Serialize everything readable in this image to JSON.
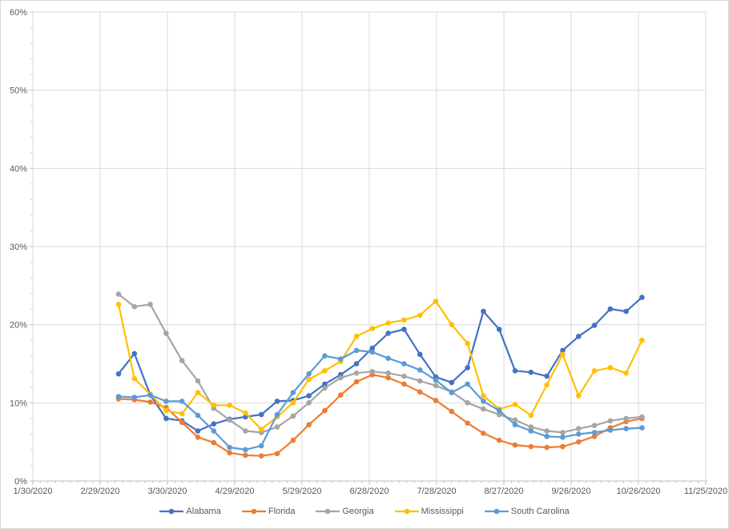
{
  "chart_data": {
    "type": "line",
    "title": "",
    "legend_position": "bottom",
    "grid": true,
    "y_axis": {
      "min": 0,
      "max": 60,
      "step": 10,
      "format": "percent",
      "tick_labels": [
        "0%",
        "10%",
        "20%",
        "30%",
        "40%",
        "50%",
        "60%"
      ]
    },
    "x_axis": {
      "type": "date",
      "start": "1/30/2020",
      "end": "11/25/2020",
      "tick_labels": [
        "1/30/2020",
        "2/29/2020",
        "3/30/2020",
        "4/29/2020",
        "5/29/2020",
        "6/28/2020",
        "7/28/2020",
        "8/27/2020",
        "9/26/2020",
        "10/26/2020",
        "11/25/2020"
      ]
    },
    "x_dates": [
      "3/8/2020",
      "3/15/2020",
      "3/22/2020",
      "3/29/2020",
      "4/5/2020",
      "4/12/2020",
      "4/19/2020",
      "4/26/2020",
      "5/3/2020",
      "5/10/2020",
      "5/17/2020",
      "5/24/2020",
      "5/31/2020",
      "6/7/2020",
      "6/14/2020",
      "6/21/2020",
      "6/28/2020",
      "7/5/2020",
      "7/12/2020",
      "7/19/2020",
      "7/26/2020",
      "8/2/2020",
      "8/9/2020",
      "8/16/2020",
      "8/23/2020",
      "8/30/2020",
      "9/6/2020",
      "9/13/2020",
      "9/20/2020",
      "9/27/2020",
      "10/4/2020",
      "10/11/2020",
      "10/18/2020",
      "10/25/2020"
    ],
    "series": [
      {
        "name": "Alabama",
        "color": "#4472C4",
        "values": [
          13.7,
          16.3,
          11.0,
          8.0,
          7.7,
          6.4,
          7.3,
          7.9,
          8.2,
          8.5,
          10.2,
          10.3,
          10.9,
          12.4,
          13.6,
          15.0,
          17.0,
          18.9,
          19.4,
          16.2,
          13.3,
          12.6,
          14.5,
          21.7,
          19.4,
          14.1,
          13.9,
          13.4,
          16.7,
          18.5,
          19.9,
          22.0,
          21.7,
          23.5
        ]
      },
      {
        "name": "Florida",
        "color": "#ED7D31",
        "values": [
          10.5,
          10.4,
          10.1,
          9.4,
          7.5,
          5.6,
          4.9,
          3.6,
          3.3,
          3.2,
          3.5,
          5.2,
          7.2,
          9.0,
          11.0,
          12.7,
          13.6,
          13.2,
          12.4,
          11.4,
          10.3,
          8.9,
          7.4,
          6.1,
          5.2,
          4.6,
          4.4,
          4.3,
          4.4,
          5.0,
          5.7,
          6.8,
          7.6,
          8.0
        ]
      },
      {
        "name": "Georgia",
        "color": "#A5A5A5",
        "values": [
          23.9,
          22.3,
          22.6,
          18.9,
          15.4,
          12.8,
          9.3,
          7.8,
          6.4,
          6.2,
          6.9,
          8.3,
          10.0,
          11.9,
          13.2,
          13.8,
          14.0,
          13.8,
          13.4,
          12.8,
          12.2,
          11.4,
          10.0,
          9.2,
          8.5,
          7.8,
          6.9,
          6.4,
          6.2,
          6.7,
          7.1,
          7.7,
          8.0,
          8.2
        ]
      },
      {
        "name": "Mississippi",
        "color": "#FFC000",
        "values": [
          22.6,
          13.1,
          11.1,
          9.0,
          8.6,
          11.3,
          9.7,
          9.7,
          8.7,
          6.6,
          8.2,
          10.0,
          13.0,
          14.1,
          15.3,
          18.5,
          19.5,
          20.2,
          20.6,
          21.2,
          23.0,
          20.0,
          17.6,
          10.9,
          9.2,
          9.8,
          8.4,
          12.3,
          16.2,
          10.9,
          14.1,
          14.5,
          13.8,
          18.0
        ]
      },
      {
        "name": "South Carolina",
        "color": "#5B9BD5",
        "values": [
          10.8,
          10.7,
          11.0,
          10.2,
          10.2,
          8.4,
          6.4,
          4.3,
          4.0,
          4.5,
          8.5,
          11.3,
          13.7,
          16.0,
          15.6,
          16.7,
          16.5,
          15.7,
          15.0,
          14.2,
          12.9,
          11.3,
          12.4,
          10.2,
          9.0,
          7.2,
          6.4,
          5.7,
          5.6,
          6.0,
          6.2,
          6.5,
          6.7,
          6.8
        ]
      }
    ],
    "colors": {
      "gridline": "#D9D9D9",
      "axis_line": "#BFBFBF",
      "tick": "#BFBFBF",
      "label_text": "#595959"
    }
  }
}
